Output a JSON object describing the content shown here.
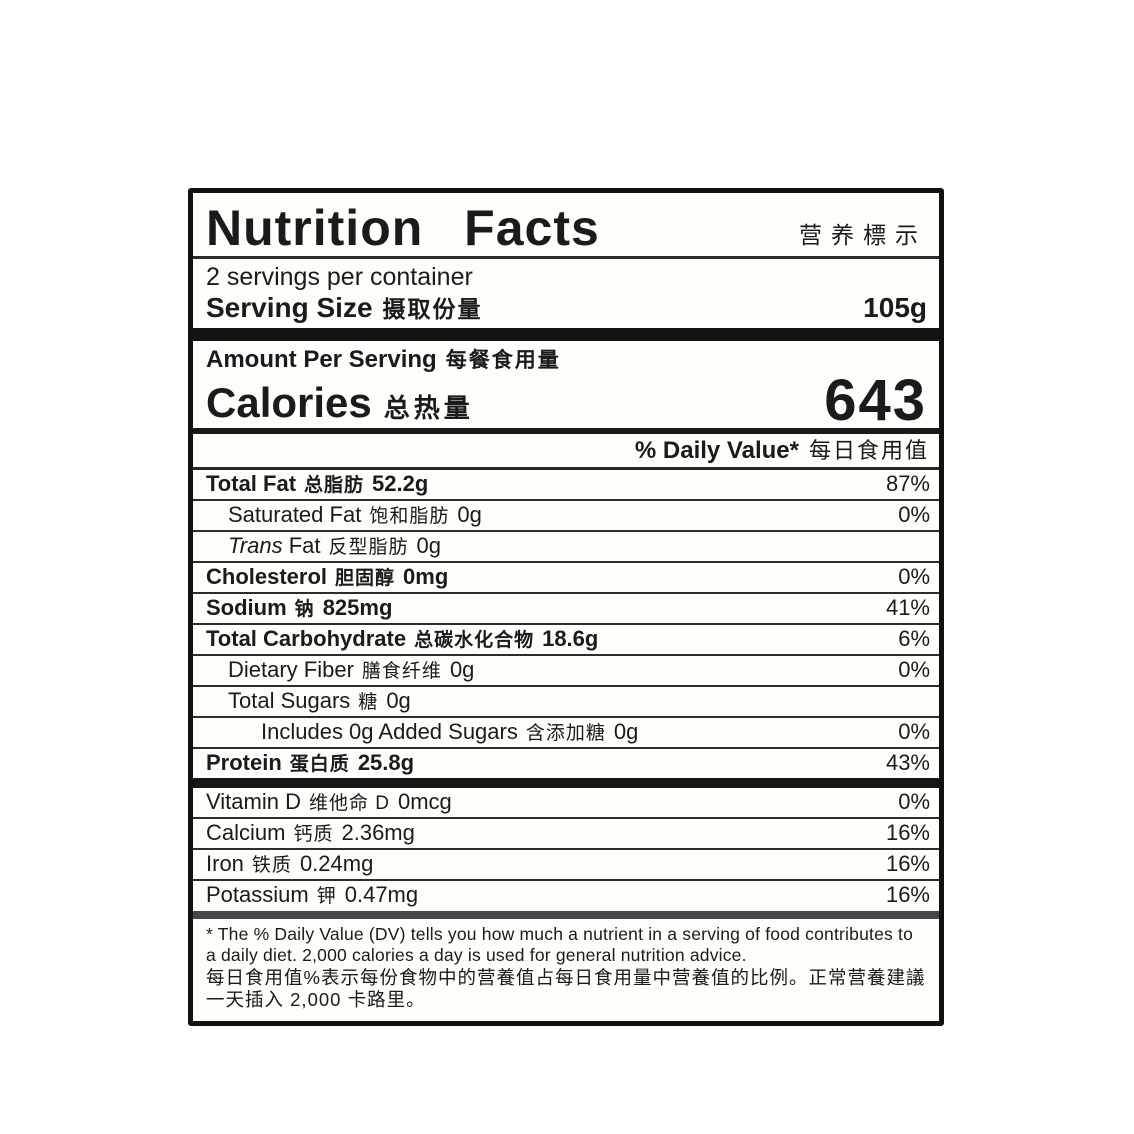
{
  "label": {
    "title": "Nutrition Facts",
    "title_zh": "营养標示",
    "servings_per_container": "2 servings per container",
    "serving_size": {
      "label": "Serving Size",
      "zh": "摄取份量",
      "value": "105g"
    },
    "amount_per_serving": {
      "label": "Amount Per Serving",
      "zh": "每餐食用量"
    },
    "calories": {
      "label": "Calories",
      "zh": "总热量",
      "value": "643"
    },
    "daily_value_header": {
      "label": "% Daily Value*",
      "zh": "每日食用值"
    },
    "nutrients": [
      {
        "name": "Total Fat",
        "zh": "总脂肪",
        "amount": "52.2g",
        "dv": "87%",
        "bold": true,
        "indent": 0
      },
      {
        "name": "Saturated Fat",
        "zh": "饱和脂肪",
        "amount": "0g",
        "dv": "0%",
        "bold": false,
        "indent": 1
      },
      {
        "italic_prefix": "Trans",
        "name": "Fat",
        "zh": "反型脂肪",
        "amount": "0g",
        "dv": "",
        "bold": false,
        "indent": 1
      },
      {
        "name": "Cholesterol",
        "zh": "胆固醇",
        "amount": "0mg",
        "dv": "0%",
        "bold": true,
        "indent": 0
      },
      {
        "name": "Sodium",
        "zh": "钠",
        "amount": "825mg",
        "dv": "41%",
        "bold": true,
        "indent": 0
      },
      {
        "name": "Total Carbohydrate",
        "zh": "总碳水化合物",
        "amount": "18.6g",
        "dv": "6%",
        "bold": true,
        "indent": 0
      },
      {
        "name": "Dietary Fiber",
        "zh": "膳食纤维",
        "amount": "0g",
        "dv": "0%",
        "bold": false,
        "indent": 1
      },
      {
        "name": "Total Sugars",
        "zh": "糖",
        "amount": "0g",
        "dv": "",
        "bold": false,
        "indent": 1
      },
      {
        "name": "Includes 0g Added Sugars",
        "zh": "含添加糖",
        "amount": "0g",
        "dv": "0%",
        "bold": false,
        "indent": 2
      },
      {
        "name": "Protein",
        "zh": "蛋白质",
        "amount": "25.8g",
        "dv": "43%",
        "bold": true,
        "indent": 0
      }
    ],
    "vitamins": [
      {
        "name": "Vitamin D",
        "zh": "维他命 D",
        "amount": "0mcg",
        "dv": "0%",
        "bold": false,
        "indent": 0
      },
      {
        "name": "Calcium",
        "zh": "钙质",
        "amount": "2.36mg",
        "dv": "16%",
        "bold": false,
        "indent": 0
      },
      {
        "name": "Iron",
        "zh": "铁质",
        "amount": "0.24mg",
        "dv": "16%",
        "bold": false,
        "indent": 0
      },
      {
        "name": "Potassium",
        "zh": "钾",
        "amount": "0.47mg",
        "dv": "16%",
        "bold": false,
        "indent": 0
      }
    ],
    "footnote_en": "* The % Daily Value (DV) tells you how much a nutrient in a serving of food contributes to a daily diet. 2,000 calories a day is used for general nutrition advice.",
    "footnote_zh": "每日食用值%表示每份食物中的营養值占每日食用量中营養值的比例。正常营養建議一天插入 2,000 卡路里。"
  },
  "colors": {
    "ink": "#1b1b1b",
    "label_bg": "#fdfdfa",
    "page_bg": "#ffffff"
  }
}
